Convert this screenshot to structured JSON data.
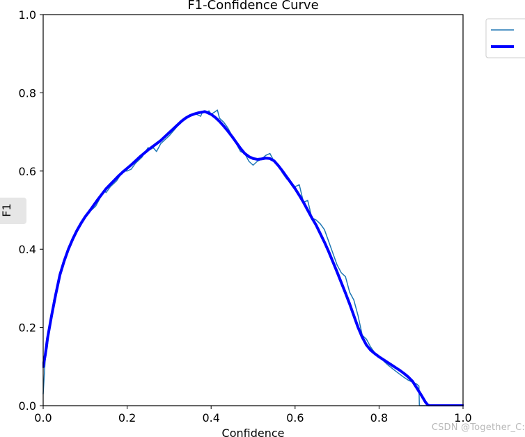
{
  "chart_data": {
    "type": "line",
    "title": "F1-Confidence Curve",
    "xlabel": "Confidence",
    "ylabel": "F1",
    "xlim": [
      0.0,
      1.0
    ],
    "ylim": [
      0.0,
      1.0
    ],
    "xticks": [
      "0.0",
      "0.2",
      "0.4",
      "0.6",
      "0.8",
      "1.0"
    ],
    "yticks": [
      "0.0",
      "0.2",
      "0.4",
      "0.6",
      "0.8",
      "1.0"
    ],
    "grid": false,
    "legend_position": "outside-top-right",
    "series": [
      {
        "color": "#1f77b4",
        "width": "thin",
        "x": [
          0.0,
          0.005,
          0.01,
          0.015,
          0.02,
          0.025,
          0.03,
          0.04,
          0.05,
          0.06,
          0.07,
          0.08,
          0.09,
          0.1,
          0.11,
          0.115,
          0.125,
          0.135,
          0.145,
          0.15,
          0.16,
          0.175,
          0.19,
          0.2,
          0.21,
          0.22,
          0.235,
          0.25,
          0.255,
          0.262,
          0.27,
          0.28,
          0.3,
          0.32,
          0.34,
          0.36,
          0.375,
          0.38,
          0.39,
          0.395,
          0.4,
          0.41,
          0.415,
          0.42,
          0.43,
          0.44,
          0.45,
          0.46,
          0.47,
          0.48,
          0.49,
          0.5,
          0.51,
          0.52,
          0.53,
          0.54,
          0.55,
          0.56,
          0.57,
          0.58,
          0.59,
          0.6,
          0.61,
          0.62,
          0.63,
          0.64,
          0.65,
          0.66,
          0.67,
          0.68,
          0.69,
          0.7,
          0.71,
          0.72,
          0.73,
          0.74,
          0.75,
          0.76,
          0.77,
          0.78,
          0.79,
          0.8,
          0.82,
          0.84,
          0.86,
          0.87,
          0.88,
          0.89,
          0.895,
          0.896,
          0.9,
          0.91,
          0.92,
          0.94,
          0.96,
          0.98,
          1.0
        ],
        "y": [
          0.03,
          0.12,
          0.15,
          0.2,
          0.23,
          0.27,
          0.29,
          0.33,
          0.375,
          0.4,
          0.43,
          0.45,
          0.47,
          0.48,
          0.5,
          0.5,
          0.51,
          0.53,
          0.55,
          0.545,
          0.56,
          0.575,
          0.6,
          0.6,
          0.605,
          0.62,
          0.635,
          0.66,
          0.655,
          0.66,
          0.65,
          0.67,
          0.69,
          0.715,
          0.735,
          0.748,
          0.74,
          0.752,
          0.75,
          0.754,
          0.745,
          0.752,
          0.756,
          0.735,
          0.725,
          0.71,
          0.69,
          0.67,
          0.65,
          0.645,
          0.625,
          0.615,
          0.625,
          0.63,
          0.64,
          0.645,
          0.625,
          0.615,
          0.595,
          0.58,
          0.57,
          0.56,
          0.565,
          0.52,
          0.525,
          0.48,
          0.475,
          0.465,
          0.45,
          0.42,
          0.39,
          0.36,
          0.34,
          0.33,
          0.29,
          0.27,
          0.23,
          0.18,
          0.17,
          0.15,
          0.135,
          0.125,
          0.105,
          0.088,
          0.072,
          0.065,
          0.06,
          0.055,
          0.05,
          0.0,
          0.0,
          0.0,
          0.0,
          0.0,
          0.0,
          0.0,
          0.0
        ]
      },
      {
        "color": "#0000ff",
        "width": "thick",
        "x": [
          0.0,
          0.005,
          0.01,
          0.02,
          0.03,
          0.04,
          0.05,
          0.06,
          0.07,
          0.08,
          0.09,
          0.1,
          0.11,
          0.12,
          0.13,
          0.14,
          0.15,
          0.16,
          0.17,
          0.18,
          0.19,
          0.2,
          0.21,
          0.22,
          0.23,
          0.24,
          0.25,
          0.26,
          0.27,
          0.28,
          0.29,
          0.3,
          0.31,
          0.32,
          0.33,
          0.34,
          0.35,
          0.36,
          0.37,
          0.38,
          0.385,
          0.39,
          0.4,
          0.41,
          0.42,
          0.43,
          0.44,
          0.45,
          0.46,
          0.47,
          0.48,
          0.49,
          0.5,
          0.51,
          0.52,
          0.53,
          0.54,
          0.55,
          0.56,
          0.57,
          0.58,
          0.59,
          0.6,
          0.61,
          0.62,
          0.63,
          0.64,
          0.65,
          0.66,
          0.67,
          0.68,
          0.69,
          0.7,
          0.71,
          0.72,
          0.73,
          0.74,
          0.75,
          0.76,
          0.77,
          0.78,
          0.79,
          0.8,
          0.81,
          0.82,
          0.83,
          0.84,
          0.85,
          0.86,
          0.87,
          0.88,
          0.89,
          0.9,
          0.91,
          0.915,
          0.92,
          0.94,
          0.96,
          0.98,
          1.0
        ],
        "y": [
          0.1,
          0.13,
          0.17,
          0.23,
          0.285,
          0.335,
          0.37,
          0.4,
          0.425,
          0.447,
          0.466,
          0.483,
          0.497,
          0.512,
          0.527,
          0.541,
          0.555,
          0.566,
          0.577,
          0.588,
          0.598,
          0.607,
          0.616,
          0.626,
          0.636,
          0.645,
          0.654,
          0.662,
          0.67,
          0.678,
          0.688,
          0.698,
          0.708,
          0.718,
          0.728,
          0.736,
          0.742,
          0.746,
          0.749,
          0.751,
          0.752,
          0.75,
          0.745,
          0.737,
          0.727,
          0.715,
          0.702,
          0.688,
          0.673,
          0.658,
          0.645,
          0.637,
          0.632,
          0.63,
          0.631,
          0.633,
          0.632,
          0.626,
          0.614,
          0.6,
          0.585,
          0.57,
          0.555,
          0.538,
          0.52,
          0.5,
          0.48,
          0.462,
          0.44,
          0.418,
          0.394,
          0.368,
          0.342,
          0.315,
          0.288,
          0.26,
          0.23,
          0.2,
          0.175,
          0.155,
          0.142,
          0.133,
          0.125,
          0.118,
          0.111,
          0.104,
          0.097,
          0.09,
          0.082,
          0.073,
          0.062,
          0.045,
          0.028,
          0.01,
          0.003,
          0.0,
          0.0,
          0.0,
          0.0,
          0.0
        ]
      }
    ]
  },
  "watermark": "CSDN @Together_C:"
}
